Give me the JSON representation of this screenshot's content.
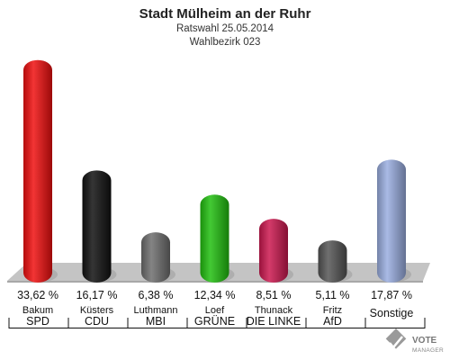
{
  "chart_data": {
    "type": "bar",
    "title": "Stadt Mülheim an der Ruhr",
    "subtitle_lines": [
      "Ratswahl 25.05.2014",
      "Wahlbezirk 023"
    ],
    "ylim": [
      0,
      35
    ],
    "grid": false,
    "legend": "none",
    "bars": [
      {
        "candidate": "Bakum",
        "party": "SPD",
        "value": 33.62,
        "label": "33,62 %",
        "color": "#f01010"
      },
      {
        "candidate": "Küsters",
        "party": "CDU",
        "value": 16.17,
        "label": "16,17 %",
        "color": "#111111"
      },
      {
        "candidate": "Luthmann",
        "party": "MBI",
        "value": 6.38,
        "label": "6,38 %",
        "color": "#6e6e6e"
      },
      {
        "candidate": "Loef",
        "party": "GRÜNE",
        "value": 12.34,
        "label": "12,34 %",
        "color": "#22c010"
      },
      {
        "candidate": "Thunack",
        "party": "DIE LINKE",
        "value": 8.51,
        "label": "8,51 %",
        "color": "#cc1850"
      },
      {
        "candidate": "Fritz",
        "party": "AfD",
        "value": 5.11,
        "label": "5,11 %",
        "color": "#555555"
      },
      {
        "candidate": "",
        "party": "Sonstige",
        "value": 17.87,
        "label": "17,87 %",
        "color": "#9aaee0"
      }
    ]
  },
  "logo": {
    "line1": "VOTE",
    "line2": "MANAGER"
  }
}
